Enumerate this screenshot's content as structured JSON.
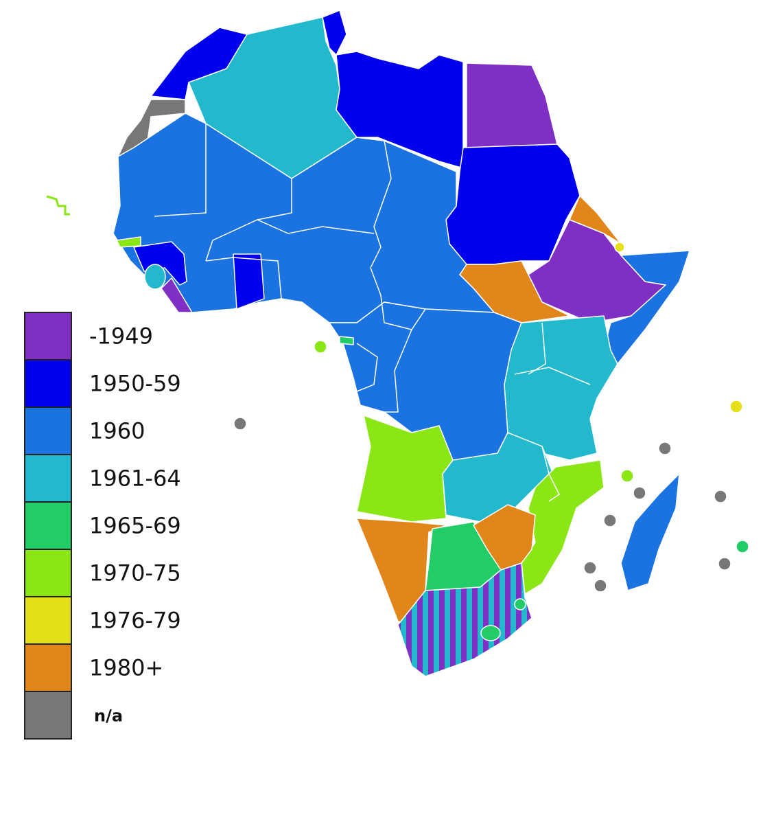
{
  "legend": {
    "items": [
      {
        "label": "-1949",
        "color": "#7f2fc4"
      },
      {
        "label": "1950-59",
        "color": "#0000ee"
      },
      {
        "label": "1960",
        "color": "#1a73e0"
      },
      {
        "label": "1961-64",
        "color": "#22b9cd"
      },
      {
        "label": "1965-69",
        "color": "#22cc66"
      },
      {
        "label": "1970-75",
        "color": "#8ae614"
      },
      {
        "label": "1976-79",
        "color": "#e5e01a"
      },
      {
        "label": "1980+",
        "color": "#e0861a"
      },
      {
        "label": "n/a",
        "color": "#777777"
      }
    ]
  }
}
